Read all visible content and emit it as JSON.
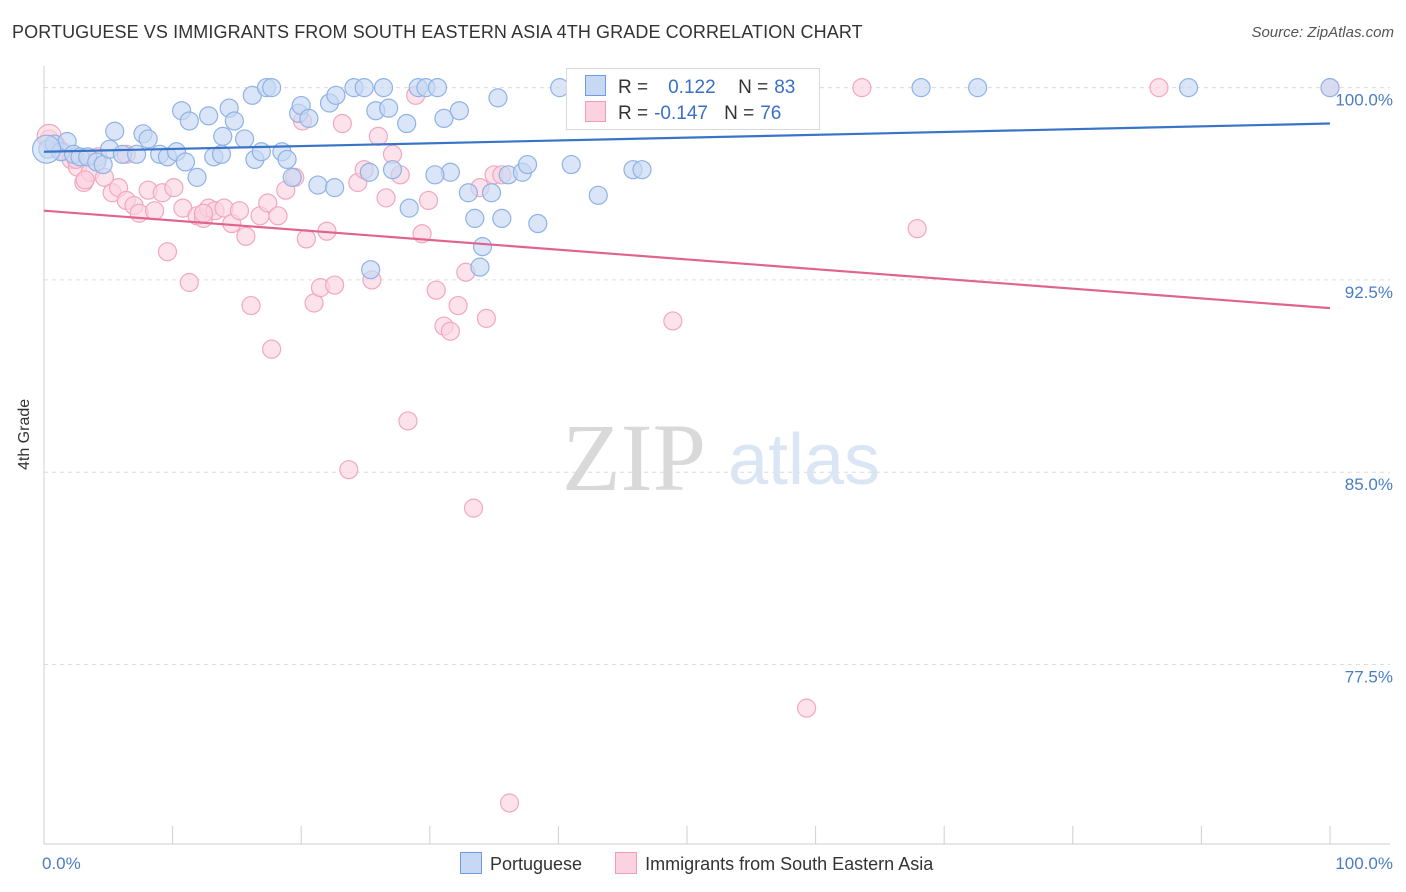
{
  "title": "PORTUGUESE VS IMMIGRANTS FROM SOUTH EASTERN ASIA 4TH GRADE CORRELATION CHART",
  "source": "Source: ZipAtlas.com",
  "watermark": {
    "zip": "ZIP",
    "atlas": "atlas"
  },
  "legend_stats": [
    {
      "r_label": "R =",
      "r_value": "0.122",
      "n_label": "N =",
      "n_value": "83",
      "color": "#6f9be0"
    },
    {
      "r_label": "R =",
      "r_value": "-0.147",
      "n_label": "N =",
      "n_value": "76",
      "color": "#f19bb7"
    }
  ],
  "bottom_legend": [
    {
      "label": "Portuguese",
      "color": "#6f9be0"
    },
    {
      "label": "Immigrants from South Eastern Asia",
      "color": "#f19bb7"
    }
  ],
  "chart_data": {
    "type": "scatter",
    "title": "PORTUGUESE VS IMMIGRANTS FROM SOUTH EASTERN ASIA 4TH GRADE CORRELATION CHART",
    "xlabel": "",
    "ylabel": "4th Grade",
    "xlim": [
      0,
      100
    ],
    "ylim": [
      70.5,
      101
    ],
    "x_tick_labels": [
      "0.0%",
      "100.0%"
    ],
    "y_ticks": [
      77.5,
      85.0,
      92.5,
      100.0
    ],
    "y_tick_labels": [
      "77.5%",
      "85.0%",
      "92.5%",
      "100.0%"
    ],
    "grid": true,
    "series": [
      {
        "name": "Portuguese",
        "color": "#6f9be0",
        "trend": {
          "x": [
            0,
            100
          ],
          "y": [
            97.5,
            98.6
          ]
        },
        "points": [
          [
            0.3,
            97.6
          ],
          [
            0.8,
            97.8
          ],
          [
            1.3,
            97.5
          ],
          [
            1.8,
            97.9
          ],
          [
            2.3,
            97.4
          ],
          [
            2.8,
            97.3
          ],
          [
            3.4,
            97.3
          ],
          [
            4.1,
            97.1
          ],
          [
            4.6,
            97.0
          ],
          [
            5.1,
            97.6
          ],
          [
            5.5,
            98.3
          ],
          [
            6.1,
            97.4
          ],
          [
            7.2,
            97.4
          ],
          [
            7.7,
            98.2
          ],
          [
            8.1,
            98.0
          ],
          [
            9.0,
            97.4
          ],
          [
            9.6,
            97.3
          ],
          [
            10.3,
            97.5
          ],
          [
            10.7,
            99.1
          ],
          [
            11.0,
            97.1
          ],
          [
            11.3,
            98.7
          ],
          [
            11.9,
            96.5
          ],
          [
            12.8,
            98.9
          ],
          [
            13.2,
            97.3
          ],
          [
            13.8,
            97.4
          ],
          [
            13.9,
            98.1
          ],
          [
            14.4,
            99.2
          ],
          [
            14.8,
            98.7
          ],
          [
            15.6,
            98.0
          ],
          [
            16.2,
            99.7
          ],
          [
            16.4,
            97.2
          ],
          [
            16.9,
            97.5
          ],
          [
            17.3,
            100.0
          ],
          [
            17.7,
            100.0
          ],
          [
            18.5,
            97.5
          ],
          [
            18.9,
            97.2
          ],
          [
            19.3,
            96.5
          ],
          [
            19.8,
            99.0
          ],
          [
            20.0,
            99.3
          ],
          [
            20.6,
            98.8
          ],
          [
            21.3,
            96.2
          ],
          [
            22.2,
            99.4
          ],
          [
            22.6,
            96.1
          ],
          [
            22.7,
            99.7
          ],
          [
            24.1,
            100.0
          ],
          [
            24.9,
            100.0
          ],
          [
            25.3,
            96.7
          ],
          [
            25.8,
            99.1
          ],
          [
            26.4,
            100.0
          ],
          [
            26.8,
            99.2
          ],
          [
            28.2,
            98.6
          ],
          [
            29.1,
            100.0
          ],
          [
            29.7,
            100.0
          ],
          [
            30.6,
            100.0
          ],
          [
            31.1,
            98.8
          ],
          [
            31.6,
            96.7
          ],
          [
            32.3,
            99.1
          ],
          [
            33.0,
            95.9
          ],
          [
            33.5,
            94.9
          ],
          [
            34.1,
            93.8
          ],
          [
            34.8,
            95.9
          ],
          [
            35.3,
            99.6
          ],
          [
            35.6,
            94.9
          ],
          [
            36.1,
            96.6
          ],
          [
            37.2,
            96.7
          ],
          [
            37.6,
            97.0
          ],
          [
            38.4,
            94.7
          ],
          [
            40.1,
            100.0
          ],
          [
            41.0,
            97.0
          ],
          [
            43.1,
            95.8
          ],
          [
            45.8,
            96.8
          ],
          [
            46.5,
            96.8
          ],
          [
            53.2,
            100.0
          ],
          [
            57.8,
            100.0
          ],
          [
            68.2,
            100.0
          ],
          [
            72.6,
            100.0
          ],
          [
            89.0,
            100.0
          ],
          [
            100.0,
            100.0
          ],
          [
            27.1,
            96.8
          ],
          [
            30.4,
            96.6
          ],
          [
            33.9,
            93.0
          ],
          [
            28.4,
            95.3
          ],
          [
            25.4,
            92.9
          ]
        ]
      },
      {
        "name": "Immigrants from South Eastern Asia",
        "color": "#f19bb7",
        "trend": {
          "x": [
            0,
            100
          ],
          "y": [
            95.2,
            91.4
          ]
        },
        "points": [
          [
            0.4,
            98.0
          ],
          [
            0.9,
            97.8
          ],
          [
            1.5,
            97.5
          ],
          [
            2.1,
            97.2
          ],
          [
            2.6,
            96.9
          ],
          [
            3.1,
            96.3
          ],
          [
            3.6,
            96.7
          ],
          [
            4.2,
            97.3
          ],
          [
            4.7,
            96.5
          ],
          [
            5.3,
            95.9
          ],
          [
            5.8,
            96.1
          ],
          [
            6.4,
            95.6
          ],
          [
            7.0,
            95.4
          ],
          [
            7.4,
            95.1
          ],
          [
            8.1,
            96.0
          ],
          [
            8.6,
            95.2
          ],
          [
            9.2,
            95.9
          ],
          [
            9.6,
            93.6
          ],
          [
            10.1,
            96.1
          ],
          [
            10.8,
            95.3
          ],
          [
            11.3,
            92.4
          ],
          [
            11.9,
            95.0
          ],
          [
            12.4,
            94.9
          ],
          [
            12.8,
            95.3
          ],
          [
            13.3,
            95.2
          ],
          [
            14.0,
            95.3
          ],
          [
            14.6,
            94.7
          ],
          [
            15.2,
            95.2
          ],
          [
            15.7,
            94.2
          ],
          [
            16.1,
            91.5
          ],
          [
            16.8,
            95.0
          ],
          [
            17.4,
            95.5
          ],
          [
            17.7,
            89.8
          ],
          [
            18.2,
            95.0
          ],
          [
            18.8,
            96.0
          ],
          [
            19.5,
            96.5
          ],
          [
            20.1,
            98.7
          ],
          [
            20.4,
            94.1
          ],
          [
            21.0,
            91.6
          ],
          [
            21.5,
            92.2
          ],
          [
            22.0,
            94.4
          ],
          [
            22.6,
            92.3
          ],
          [
            23.2,
            98.6
          ],
          [
            23.7,
            85.1
          ],
          [
            24.4,
            96.3
          ],
          [
            24.9,
            96.8
          ],
          [
            25.5,
            92.5
          ],
          [
            26.0,
            98.1
          ],
          [
            26.6,
            95.7
          ],
          [
            27.1,
            97.4
          ],
          [
            27.7,
            96.6
          ],
          [
            28.3,
            87.0
          ],
          [
            28.9,
            99.7
          ],
          [
            29.4,
            94.3
          ],
          [
            29.9,
            95.6
          ],
          [
            30.5,
            92.1
          ],
          [
            31.1,
            90.7
          ],
          [
            31.6,
            90.5
          ],
          [
            32.2,
            91.5
          ],
          [
            32.8,
            92.8
          ],
          [
            33.4,
            83.6
          ],
          [
            33.9,
            96.1
          ],
          [
            34.4,
            91.0
          ],
          [
            35.0,
            96.6
          ],
          [
            35.6,
            96.6
          ],
          [
            36.2,
            72.1
          ],
          [
            48.9,
            90.9
          ],
          [
            59.3,
            75.8
          ],
          [
            63.6,
            100.0
          ],
          [
            67.9,
            94.5
          ],
          [
            86.7,
            100.0
          ],
          [
            100.0,
            100.0
          ],
          [
            12.4,
            95.1
          ],
          [
            2.5,
            97.2
          ],
          [
            6.4,
            97.4
          ],
          [
            3.2,
            96.4
          ]
        ]
      }
    ]
  }
}
